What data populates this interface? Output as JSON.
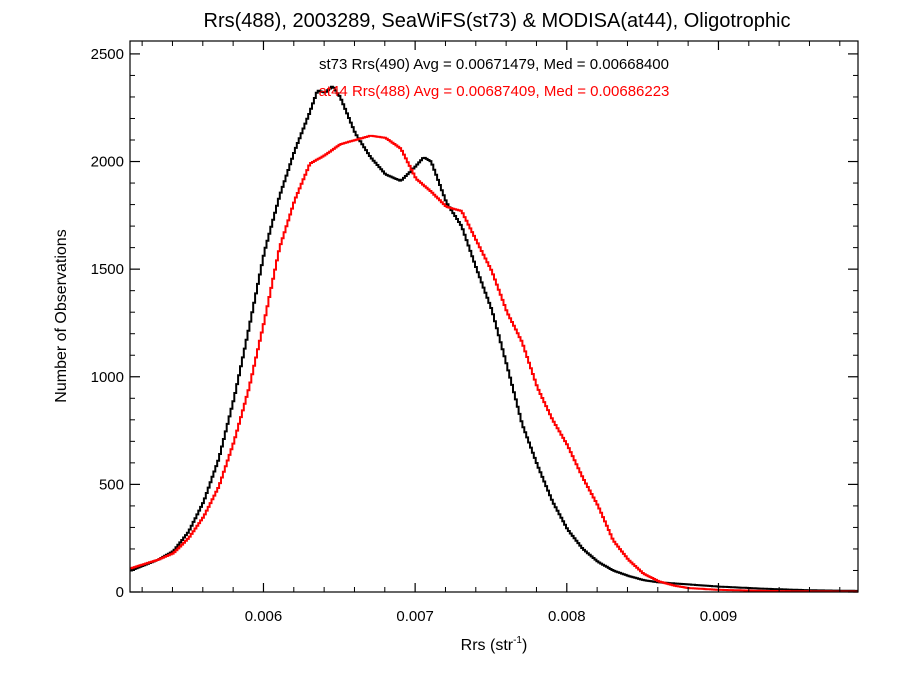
{
  "chart_data": {
    "type": "line",
    "title": "Rrs(488), 2003289, SeaWiFS(st73) & MODISA(at44), Oligotrophic",
    "xlabel": "Rrs (str",
    "xlabel_sup": "-1",
    "xlabel_end": ")",
    "ylabel": "Number of Observations",
    "xlim": [
      0.00512,
      0.00992
    ],
    "ylim": [
      0,
      2560
    ],
    "x_ticks": [
      0.006,
      0.007,
      0.008,
      0.009
    ],
    "x_tick_labels": [
      "0.006",
      "0.007",
      "0.008",
      "0.009"
    ],
    "y_ticks": [
      0,
      500,
      1000,
      1500,
      2000,
      2500
    ],
    "y_tick_labels": [
      "0",
      "500",
      "1000",
      "1500",
      "2000",
      "2500"
    ],
    "grid": false,
    "step": true,
    "annotations": [
      {
        "text": "st73 Rrs(490) Avg = 0.00671479, Med = 0.00668400",
        "color": "#000000"
      },
      {
        "text": "at44 Rrs(488) Avg = 0.00687409, Med = 0.00686223",
        "color": "#ff0000"
      }
    ],
    "series": [
      {
        "color": "#000000",
        "points": [
          [
            0.00512,
            100
          ],
          [
            0.0053,
            150
          ],
          [
            0.0054,
            190
          ],
          [
            0.0055,
            280
          ],
          [
            0.0056,
            420
          ],
          [
            0.0057,
            620
          ],
          [
            0.0058,
            900
          ],
          [
            0.0059,
            1230
          ],
          [
            0.006,
            1580
          ],
          [
            0.0061,
            1840
          ],
          [
            0.0062,
            2050
          ],
          [
            0.0063,
            2230
          ],
          [
            0.00635,
            2330
          ],
          [
            0.0064,
            2320
          ],
          [
            0.00645,
            2350
          ],
          [
            0.0065,
            2300
          ],
          [
            0.0066,
            2130
          ],
          [
            0.0067,
            2020
          ],
          [
            0.0068,
            1940
          ],
          [
            0.0069,
            1910
          ],
          [
            0.007,
            1980
          ],
          [
            0.00705,
            2020
          ],
          [
            0.0071,
            2000
          ],
          [
            0.0072,
            1810
          ],
          [
            0.0073,
            1700
          ],
          [
            0.0074,
            1500
          ],
          [
            0.0075,
            1310
          ],
          [
            0.0076,
            1050
          ],
          [
            0.0077,
            780
          ],
          [
            0.0078,
            590
          ],
          [
            0.0079,
            420
          ],
          [
            0.008,
            290
          ],
          [
            0.0081,
            200
          ],
          [
            0.0082,
            140
          ],
          [
            0.0083,
            100
          ],
          [
            0.0084,
            75
          ],
          [
            0.0085,
            55
          ],
          [
            0.0086,
            45
          ],
          [
            0.0088,
            35
          ],
          [
            0.009,
            25
          ],
          [
            0.0093,
            15
          ],
          [
            0.0096,
            8
          ],
          [
            0.00992,
            5
          ]
        ]
      },
      {
        "color": "#ff0000",
        "points": [
          [
            0.00512,
            110
          ],
          [
            0.0053,
            150
          ],
          [
            0.0054,
            180
          ],
          [
            0.0055,
            250
          ],
          [
            0.0056,
            350
          ],
          [
            0.0057,
            490
          ],
          [
            0.0058,
            700
          ],
          [
            0.0059,
            950
          ],
          [
            0.006,
            1260
          ],
          [
            0.0061,
            1600
          ],
          [
            0.0062,
            1820
          ],
          [
            0.0063,
            1990
          ],
          [
            0.0064,
            2030
          ],
          [
            0.0065,
            2080
          ],
          [
            0.0066,
            2100
          ],
          [
            0.0067,
            2120
          ],
          [
            0.0068,
            2110
          ],
          [
            0.0069,
            2060
          ],
          [
            0.007,
            1920
          ],
          [
            0.0071,
            1860
          ],
          [
            0.0072,
            1790
          ],
          [
            0.0073,
            1770
          ],
          [
            0.0074,
            1630
          ],
          [
            0.0075,
            1490
          ],
          [
            0.0076,
            1300
          ],
          [
            0.0077,
            1160
          ],
          [
            0.0078,
            950
          ],
          [
            0.0079,
            800
          ],
          [
            0.008,
            680
          ],
          [
            0.0081,
            530
          ],
          [
            0.0082,
            400
          ],
          [
            0.0083,
            240
          ],
          [
            0.0084,
            150
          ],
          [
            0.0085,
            85
          ],
          [
            0.0086,
            50
          ],
          [
            0.0087,
            30
          ],
          [
            0.0088,
            18
          ],
          [
            0.009,
            10
          ],
          [
            0.0093,
            5
          ],
          [
            0.0096,
            3
          ],
          [
            0.00992,
            2
          ]
        ]
      }
    ]
  }
}
